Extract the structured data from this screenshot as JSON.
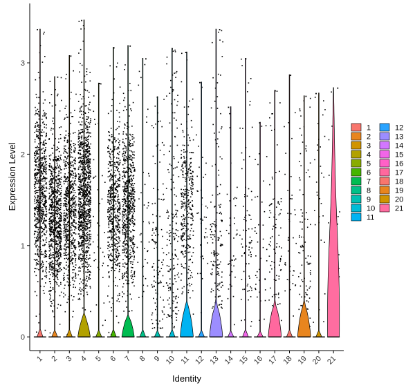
{
  "chart_data": {
    "type": "violin",
    "xlabel": "Identity",
    "ylabel": "Expression Level",
    "ylim": [
      -0.15,
      3.65
    ],
    "yticks": [
      0,
      1,
      2,
      3
    ],
    "categories": [
      "1",
      "2",
      "3",
      "4",
      "5",
      "6",
      "7",
      "8",
      "9",
      "10",
      "11",
      "12",
      "13",
      "14",
      "15",
      "16",
      "17",
      "18",
      "19",
      "20",
      "21"
    ],
    "colors": [
      "#F8766D",
      "#E8851E",
      "#D09400",
      "#B2A100",
      "#89AC00",
      "#45B500",
      "#00BC51",
      "#00C087",
      "#00C0B2",
      "#00BCD6",
      "#00B3F2",
      "#29A3FF",
      "#9C8DFF",
      "#D277FF",
      "#F166E8",
      "#FF61C7",
      "#FF689E",
      "#F8766D",
      "#E8851E",
      "#D09400",
      "#FF6DA0"
    ],
    "violin_height": [
      0.02,
      0.02,
      0.02,
      0.22,
      0.01,
      0.02,
      0.22,
      0.02,
      0.02,
      0.02,
      0.35,
      0.02,
      0.35,
      0.01,
      0.01,
      0.01,
      0.35,
      0.01,
      0.35,
      0.02,
      2.72
    ],
    "violin_width": [
      0.4,
      0.4,
      0.4,
      0.85,
      0.4,
      0.4,
      0.85,
      0.4,
      0.4,
      0.4,
      0.9,
      0.4,
      0.9,
      0.4,
      0.4,
      0.4,
      0.9,
      0.4,
      0.9,
      0.4,
      0.95
    ],
    "violin_tail": [
      0,
      0,
      0,
      0,
      0,
      0,
      0,
      0,
      0,
      0,
      2.45,
      0,
      1.25,
      0,
      0,
      0,
      1.15,
      0,
      0.6,
      0,
      0
    ],
    "max_value": [
      3.37,
      2.85,
      3.08,
      3.47,
      2.78,
      3.17,
      3.19,
      3.05,
      2.63,
      3.16,
      3.12,
      2.79,
      3.37,
      2.52,
      3.05,
      2.35,
      2.7,
      2.87,
      2.64,
      2.67,
      2.73
    ],
    "point_density": [
      700,
      800,
      650,
      1000,
      40,
      550,
      650,
      40,
      120,
      180,
      320,
      40,
      160,
      40,
      80,
      40,
      90,
      40,
      100,
      30,
      30
    ],
    "point_mean": [
      0.75,
      1.5,
      1.3,
      1.2,
      1.2,
      1.3,
      1.2,
      1.0,
      0.6,
      0.8,
      1.2,
      1.2,
      0.9,
      1.0,
      1.0,
      1.0,
      0.9,
      1.0,
      0.8,
      1.5,
      1.2
    ],
    "legend": {
      "position": "right",
      "entries": [
        "1",
        "2",
        "3",
        "4",
        "5",
        "6",
        "7",
        "8",
        "9",
        "10",
        "11",
        "12",
        "13",
        "14",
        "15",
        "16",
        "17",
        "18",
        "19",
        "20",
        "21"
      ]
    }
  }
}
